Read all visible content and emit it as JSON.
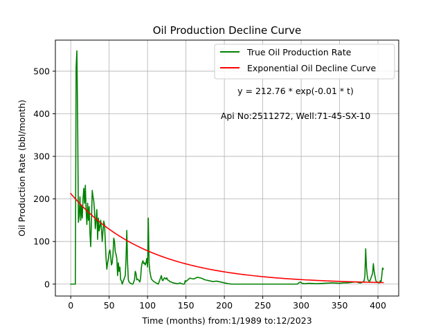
{
  "chart_data": {
    "type": "line",
    "title": "Oil Production Decline Curve",
    "xlabel": "Time (months) from:1/1989 to:12/2023",
    "ylabel": "Oil Production Rate (bbl/month)",
    "xlim": [
      -20,
      427
    ],
    "ylim": [
      -28,
      573
    ],
    "xticks": [
      0,
      50,
      100,
      150,
      200,
      250,
      300,
      350,
      400
    ],
    "yticks": [
      0,
      100,
      200,
      300,
      400,
      500
    ],
    "grid": true,
    "legend_position": "top-right",
    "annotations": [
      "y = 212.76 * exp(-0.01 * t)",
      "Api No:2511272, Well:71-45-SX-10"
    ],
    "series": [
      {
        "name": "True Oil Production Rate",
        "color": "#008000",
        "x": [
          0,
          5,
          6,
          7,
          8,
          9,
          10,
          11,
          12,
          13,
          14,
          15,
          16,
          17,
          18,
          19,
          20,
          21,
          22,
          23,
          24,
          25,
          26,
          27,
          28,
          29,
          30,
          31,
          32,
          33,
          34,
          35,
          36,
          37,
          38,
          39,
          40,
          41,
          42,
          43,
          44,
          45,
          46,
          47,
          48,
          49,
          50,
          51,
          52,
          53,
          54,
          55,
          56,
          57,
          58,
          59,
          60,
          61,
          62,
          63,
          64,
          65,
          66,
          67,
          68,
          69,
          70,
          71,
          72,
          73,
          74,
          75,
          76,
          77,
          78,
          79,
          80,
          81,
          82,
          83,
          84,
          85,
          86,
          87,
          88,
          89,
          90,
          91,
          92,
          93,
          94,
          95,
          96,
          97,
          98,
          99,
          100,
          101,
          102,
          103,
          104,
          105,
          106,
          107,
          108,
          109,
          110,
          111,
          112,
          113,
          114,
          115,
          116,
          117,
          118,
          119,
          120,
          121,
          122,
          123,
          124,
          125,
          126,
          127,
          128,
          129,
          130,
          131,
          132,
          133,
          134,
          135,
          136,
          137,
          138,
          139,
          140,
          141,
          142,
          143,
          144,
          145,
          146,
          147,
          148,
          149,
          150,
          155,
          160,
          165,
          170,
          175,
          180,
          185,
          190,
          195,
          200,
          205,
          210,
          215,
          220,
          230,
          240,
          250,
          260,
          270,
          280,
          290,
          295,
          297,
          299,
          301,
          305,
          310,
          320,
          330,
          340,
          350,
          355,
          360,
          365,
          370,
          372,
          374,
          376,
          378,
          379,
          380,
          381,
          382,
          383,
          384,
          385,
          386,
          387,
          388,
          389,
          390,
          391,
          392,
          393,
          394,
          395,
          396,
          397,
          398,
          399,
          400,
          401,
          402,
          403,
          404,
          405,
          406,
          407
        ],
        "y": [
          0,
          0,
          0,
          510,
          548,
          380,
          145,
          160,
          205,
          150,
          185,
          155,
          200,
          225,
          190,
          232,
          175,
          140,
          190,
          150,
          182,
          120,
          88,
          150,
          220,
          205,
          195,
          170,
          130,
          150,
          175,
          105,
          155,
          125,
          135,
          150,
          130,
          100,
          125,
          148,
          140,
          100,
          60,
          35,
          50,
          60,
          75,
          80,
          65,
          45,
          50,
          70,
          108,
          100,
          75,
          70,
          60,
          20,
          50,
          30,
          40,
          10,
          8,
          0,
          5,
          10,
          15,
          20,
          60,
          126,
          50,
          10,
          5,
          3,
          2,
          1,
          0,
          0,
          5,
          10,
          30,
          25,
          10,
          12,
          10,
          8,
          5,
          15,
          40,
          50,
          55,
          48,
          50,
          45,
          50,
          60,
          40,
          155,
          50,
          30,
          20,
          12,
          10,
          8,
          6,
          5,
          4,
          3,
          2,
          1,
          0,
          5,
          10,
          15,
          20,
          10,
          8,
          12,
          15,
          13,
          12,
          15,
          10,
          9,
          8,
          6,
          5,
          5,
          4,
          3,
          3,
          2,
          2,
          2,
          1,
          1,
          1,
          2,
          3,
          2,
          1,
          1,
          0,
          0,
          0,
          8,
          6,
          14,
          12,
          16,
          14,
          10,
          8,
          6,
          7,
          5,
          3,
          1,
          0,
          0,
          0,
          0,
          0,
          0,
          0,
          0,
          0,
          0,
          0,
          3,
          5,
          2,
          1,
          2,
          1,
          2,
          3,
          2,
          3,
          3,
          4,
          5,
          5,
          4,
          3,
          3,
          4,
          5,
          6,
          8,
          20,
          83,
          40,
          20,
          10,
          8,
          6,
          10,
          15,
          20,
          25,
          48,
          30,
          20,
          10,
          5,
          5,
          5,
          3,
          3,
          8,
          5,
          20,
          38,
          35
        ]
      },
      {
        "name": "Exponential Oil Decline Curve",
        "color": "#ff0000",
        "equation": {
          "a": 212.76,
          "b": 0.01
        },
        "x": [
          0,
          10,
          20,
          30,
          40,
          50,
          60,
          70,
          80,
          90,
          100,
          120,
          140,
          160,
          180,
          200,
          225,
          250,
          275,
          300,
          325,
          350,
          375,
          400,
          407
        ],
        "y": [
          212.76,
          192.5,
          174.2,
          157.6,
          142.6,
          129.0,
          116.8,
          105.6,
          95.6,
          86.5,
          78.3,
          64.1,
          52.5,
          43.0,
          35.2,
          28.8,
          22.4,
          17.5,
          13.6,
          10.6,
          8.3,
          6.4,
          5.0,
          3.9,
          3.6
        ]
      }
    ]
  }
}
